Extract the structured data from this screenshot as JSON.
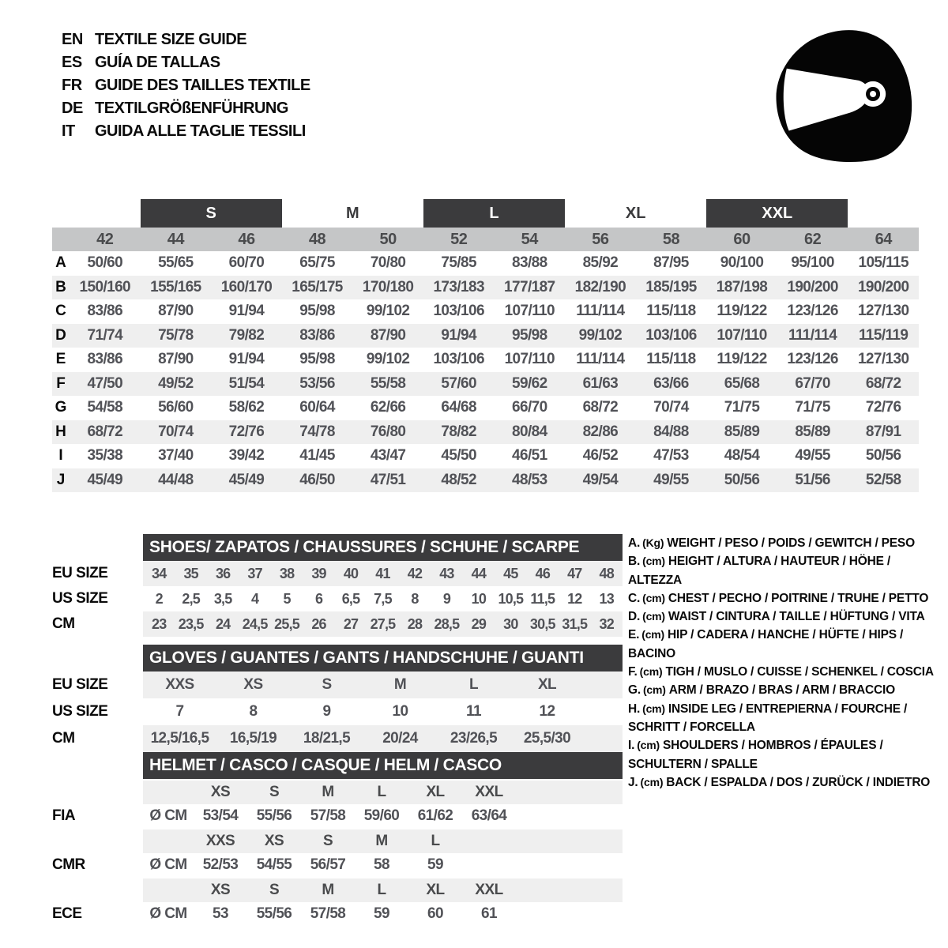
{
  "header": {
    "languages": [
      {
        "code": "EN",
        "title": "TEXTILE SIZE GUIDE"
      },
      {
        "code": "ES",
        "title": "GUÍA DE TALLAS"
      },
      {
        "code": "FR",
        "title": "GUIDE DES TAILLES TEXTILE"
      },
      {
        "code": "DE",
        "title": "TEXTILGRÖßENFÜHRUNG"
      },
      {
        "code": "IT",
        "title": "GUIDA ALLE TAGLIE TESSILI"
      }
    ],
    "icon": "racing-helmet"
  },
  "main_table": {
    "size_groups": [
      {
        "label": "S",
        "boxed": true
      },
      {
        "label": "M",
        "boxed": false
      },
      {
        "label": "L",
        "boxed": true
      },
      {
        "label": "XL",
        "boxed": false
      },
      {
        "label": "XXL",
        "boxed": true
      }
    ],
    "columns": [
      "42",
      "44",
      "46",
      "48",
      "50",
      "52",
      "54",
      "56",
      "58",
      "60",
      "62",
      "64"
    ],
    "rows": [
      {
        "label": "A",
        "values": [
          "50/60",
          "55/65",
          "60/70",
          "65/75",
          "70/80",
          "75/85",
          "83/88",
          "85/92",
          "87/95",
          "90/100",
          "95/100",
          "105/115"
        ]
      },
      {
        "label": "B",
        "values": [
          "150/160",
          "155/165",
          "160/170",
          "165/175",
          "170/180",
          "173/183",
          "177/187",
          "182/190",
          "185/195",
          "187/198",
          "190/200",
          "190/200"
        ]
      },
      {
        "label": "C",
        "values": [
          "83/86",
          "87/90",
          "91/94",
          "95/98",
          "99/102",
          "103/106",
          "107/110",
          "111/114",
          "115/118",
          "119/122",
          "123/126",
          "127/130"
        ]
      },
      {
        "label": "D",
        "values": [
          "71/74",
          "75/78",
          "79/82",
          "83/86",
          "87/90",
          "91/94",
          "95/98",
          "99/102",
          "103/106",
          "107/110",
          "111/114",
          "115/119"
        ]
      },
      {
        "label": "E",
        "values": [
          "83/86",
          "87/90",
          "91/94",
          "95/98",
          "99/102",
          "103/106",
          "107/110",
          "111/114",
          "115/118",
          "119/122",
          "123/126",
          "127/130"
        ]
      },
      {
        "label": "F",
        "values": [
          "47/50",
          "49/52",
          "51/54",
          "53/56",
          "55/58",
          "57/60",
          "59/62",
          "61/63",
          "63/66",
          "65/68",
          "67/70",
          "68/72"
        ]
      },
      {
        "label": "G",
        "values": [
          "54/58",
          "56/60",
          "58/62",
          "60/64",
          "62/66",
          "64/68",
          "66/70",
          "68/72",
          "70/74",
          "71/75",
          "71/75",
          "72/76"
        ]
      },
      {
        "label": "H",
        "values": [
          "68/72",
          "70/74",
          "72/76",
          "74/78",
          "76/80",
          "78/82",
          "80/84",
          "82/86",
          "84/88",
          "85/89",
          "85/89",
          "87/91"
        ]
      },
      {
        "label": "I",
        "values": [
          "35/38",
          "37/40",
          "39/42",
          "41/45",
          "43/47",
          "45/50",
          "46/51",
          "46/52",
          "47/53",
          "48/54",
          "49/55",
          "50/56"
        ]
      },
      {
        "label": "J",
        "values": [
          "45/49",
          "44/48",
          "45/49",
          "46/50",
          "47/51",
          "48/52",
          "48/53",
          "49/54",
          "49/55",
          "50/56",
          "51/56",
          "52/58"
        ]
      }
    ]
  },
  "shoes": {
    "title": "SHOES/ ZAPATOS / CHAUSSURES / SCHUHE / SCARPE",
    "rows": [
      {
        "label": "EU SIZE",
        "values": [
          "34",
          "35",
          "36",
          "37",
          "38",
          "39",
          "40",
          "41",
          "42",
          "43",
          "44",
          "45",
          "46",
          "47",
          "48"
        ]
      },
      {
        "label": "US SIZE",
        "values": [
          "2",
          "2,5",
          "3,5",
          "4",
          "5",
          "6",
          "6,5",
          "7,5",
          "8",
          "9",
          "10",
          "10,5",
          "11,5",
          "12",
          "13"
        ]
      },
      {
        "label": "CM",
        "values": [
          "23",
          "23,5",
          "24",
          "24,5",
          "25,5",
          "26",
          "27",
          "27,5",
          "28",
          "28,5",
          "29",
          "30",
          "30,5",
          "31,5",
          "32"
        ]
      }
    ]
  },
  "gloves": {
    "title": "GLOVES / GUANTES / GANTS / HANDSCHUHE / GUANTI",
    "rows": [
      {
        "label": "EU SIZE",
        "values": [
          "XXS",
          "XS",
          "S",
          "M",
          "L",
          "XL"
        ]
      },
      {
        "label": "US SIZE",
        "values": [
          "7",
          "8",
          "9",
          "10",
          "11",
          "12"
        ]
      },
      {
        "label": "CM",
        "values": [
          "12,5/16,5",
          "16,5/19",
          "18/21,5",
          "20/24",
          "23/26,5",
          "25,5/30"
        ]
      }
    ]
  },
  "helmet": {
    "title": "HELMET / CASCO / CASQUE / HELM / CASCO",
    "standards": [
      {
        "name": "FIA",
        "unit": "Ø CM",
        "sizes": [
          "XS",
          "S",
          "M",
          "L",
          "XL",
          "XXL"
        ],
        "values": [
          "53/54",
          "55/56",
          "57/58",
          "59/60",
          "61/62",
          "63/64"
        ]
      },
      {
        "name": "CMR",
        "unit": "Ø CM",
        "sizes": [
          "XXS",
          "XS",
          "S",
          "M",
          "L"
        ],
        "values": [
          "52/53",
          "54/55",
          "56/57",
          "58",
          "59"
        ]
      },
      {
        "name": "ECE",
        "unit": "Ø CM",
        "sizes": [
          "XS",
          "S",
          "M",
          "L",
          "XL",
          "XXL"
        ],
        "values": [
          "53",
          "55/56",
          "57/58",
          "59",
          "60",
          "61"
        ]
      }
    ]
  },
  "legend": {
    "items": [
      {
        "key": "A.",
        "unit": "(Kg)",
        "text": "WEIGHT / PESO / POIDS / GEWITCH / PESO"
      },
      {
        "key": "B.",
        "unit": "(cm)",
        "text": "HEIGHT / ALTURA / HAUTEUR / HÖHE / ALTEZZA"
      },
      {
        "key": "C.",
        "unit": "(cm)",
        "text": "CHEST / PECHO / POITRINE / TRUHE / PETTO"
      },
      {
        "key": "D.",
        "unit": "(cm)",
        "text": "WAIST / CINTURA / TAILLE / HÜFTUNG / VITA"
      },
      {
        "key": "E.",
        "unit": "(cm)",
        "text": "HIP / CADERA / HANCHE / HÜFTE / HIPS /  BACINO"
      },
      {
        "key": "F.",
        "unit": "(cm)",
        "text": "TIGH / MUSLO / CUISSE / SCHENKEL / COSCIA"
      },
      {
        "key": "G.",
        "unit": "(cm)",
        "text": "ARM  / BRAZO / BRAS / ARM / BRACCIO"
      },
      {
        "key": "H.",
        "unit": "(cm)",
        "text": "INSIDE LEG / ENTREPIERNA / FOURCHE / SCHRITT / FORCELLA"
      },
      {
        "key": "I.",
        "unit": "(cm)",
        "text": "SHOULDERS / HOMBROS / ÉPAULES / SCHULTERN / SPALLE"
      },
      {
        "key": "J.",
        "unit": "(cm)",
        "text": "BACK / ESPALDA / DOS / ZURÜCK / INDIETRO"
      }
    ]
  },
  "colors": {
    "bar_dark": "#3b3b3d",
    "header_band": "#c5c6c7",
    "row_alt": "#efefef",
    "number_text": "#515257",
    "label_text": "#0a0a0a",
    "background": "#ffffff"
  }
}
